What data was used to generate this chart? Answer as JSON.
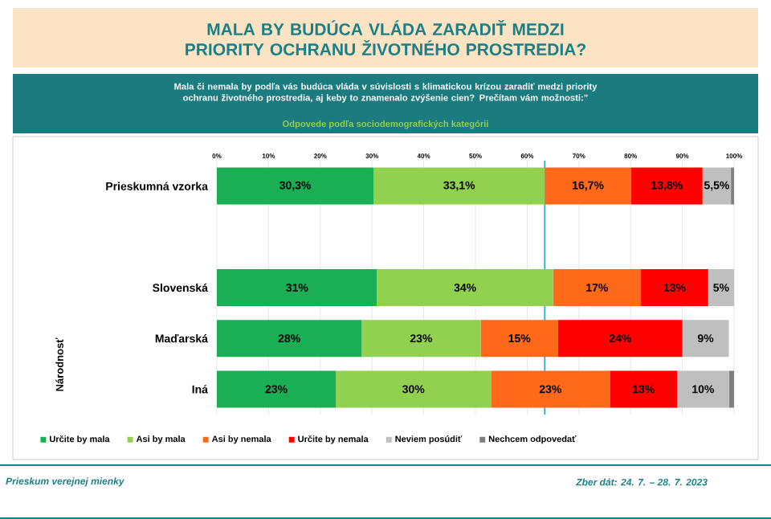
{
  "chart_data": {
    "type": "bar",
    "orientation": "horizontal",
    "stacked": true,
    "title": "MALA BY BUDÚCA VLÁDA ZARADIŤ MEDZI PRIORITY OCHRANU ŽIVOTNÉHO PROSTREDIA?",
    "subtitle": "Mala či nemala by podľa vás budúca vláda v súvislosti s klimatickou krízou zaradiť medzi priority ochranu životného prostredia, aj keby to znamenalo zvýšenie cien? Prečítam vám možnosti:”",
    "annotations": [
      "Odpovede podľa sociodemografických kategórii",
      "Národnosť",
      "Prieskum verejnej mienky",
      "Zber dát: 24. 7. – 28. 7. 2023"
    ],
    "categories": [
      "Prieskumná vzorka",
      null,
      "Slovenská",
      "Maďarská",
      "Iná"
    ],
    "series": [
      {
        "name": "Určite by mala",
        "color": "#1aaf54",
        "values": [
          30.3,
          null,
          31,
          28,
          23
        ],
        "value_labels": [
          "30,3%",
          null,
          "31%",
          "28%",
          "23%"
        ]
      },
      {
        "name": "Asi by mala",
        "color": "#92d050",
        "values": [
          33.1,
          null,
          34,
          23,
          30
        ],
        "value_labels": [
          "33,1%",
          null,
          "34%",
          "23%",
          "30%"
        ]
      },
      {
        "name": "Asi by nemala",
        "color": "#ff6a1a",
        "values": [
          16.7,
          null,
          17,
          15,
          23
        ],
        "value_labels": [
          "16,7%",
          null,
          "17%",
          "15%",
          "23%"
        ]
      },
      {
        "name": "Určite by nemala",
        "color": "#ff0000",
        "values": [
          13.8,
          null,
          13,
          24,
          13
        ],
        "value_labels": [
          "13,8%",
          null,
          "13%",
          "24%",
          "13%"
        ]
      },
      {
        "name": "Neviem posúdiť",
        "color": "#bfbfbf",
        "values": [
          5.5,
          null,
          5,
          9,
          10
        ],
        "value_labels": [
          "5,5%",
          null,
          "5%",
          "9%",
          "10%"
        ]
      },
      {
        "name": "Nechcem odpovedať",
        "color": "#7f7f7f",
        "values": [
          0.6,
          null,
          null,
          null,
          1
        ]
      }
    ],
    "xlim": [
      0,
      100
    ],
    "xticks": [
      {
        "value": 0,
        "label": "0%"
      },
      {
        "value": 10,
        "label": "10%"
      },
      {
        "value": 20,
        "label": "20%"
      },
      {
        "value": 30,
        "label": "30%"
      },
      {
        "value": 40,
        "label": "40%"
      },
      {
        "value": 50,
        "label": "50%"
      },
      {
        "value": 60,
        "label": "60%"
      },
      {
        "value": 70,
        "label": "70%"
      },
      {
        "value": 80,
        "label": "80%"
      },
      {
        "value": 90,
        "label": "90%"
      },
      {
        "value": 100,
        "label": "100%"
      }
    ],
    "ref_lines": [
      {
        "axis": "x",
        "value": 63.4,
        "color": "#2ba6de"
      }
    ],
    "grid": "x",
    "legend": "bottom"
  }
}
